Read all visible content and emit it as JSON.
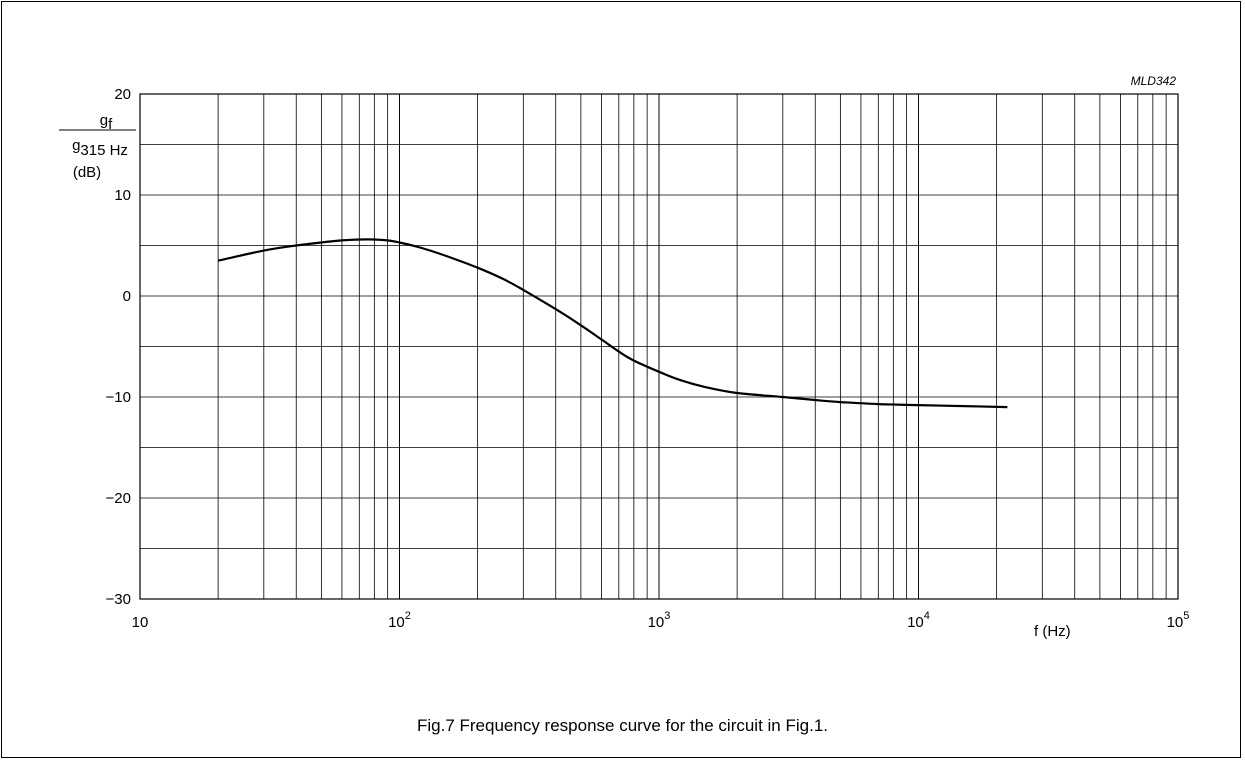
{
  "chart_data": {
    "type": "line",
    "code": "MLD342",
    "caption": "Fig.7  Frequency response curve for the circuit in Fig.1.",
    "xscale": "log",
    "xlim": [
      10,
      100000
    ],
    "ylim": [
      -30,
      20
    ],
    "grid": true,
    "xlabel": "f  (Hz)",
    "ylabel": {
      "numerator": "g",
      "numerator_sub": "f",
      "denominator": "g",
      "denominator_sub": "315 Hz",
      "unit": "(dB)"
    },
    "yticks": [
      {
        "value": 20,
        "label": "20"
      },
      {
        "value": 10,
        "label": "10"
      },
      {
        "value": 0,
        "label": "0"
      },
      {
        "value": -10,
        "label": "−10"
      },
      {
        "value": -20,
        "label": "−20"
      },
      {
        "value": -30,
        "label": "−30"
      }
    ],
    "xticks": [
      {
        "value": 10,
        "base": "10",
        "exp": ""
      },
      {
        "value": 100,
        "base": "10",
        "exp": "2"
      },
      {
        "value": 1000,
        "base": "10",
        "exp": "3"
      },
      {
        "value": 10000,
        "base": "10",
        "exp": "4"
      },
      {
        "value": 100000,
        "base": "10",
        "exp": "5"
      }
    ],
    "series": [
      {
        "x": [
          20,
          30,
          40,
          50,
          60,
          75,
          90,
          100,
          120,
          150,
          200,
          250,
          300,
          400,
          500,
          600,
          700,
          800,
          1000,
          1200,
          1500,
          2000,
          3000,
          4000,
          5000,
          7000,
          10000,
          15000,
          22000
        ],
        "y": [
          3.5,
          4.5,
          5.0,
          5.3,
          5.5,
          5.6,
          5.5,
          5.3,
          4.8,
          4.0,
          2.8,
          1.7,
          0.6,
          -1.3,
          -2.9,
          -4.3,
          -5.5,
          -6.4,
          -7.5,
          -8.3,
          -9.0,
          -9.6,
          -10.0,
          -10.3,
          -10.5,
          -10.7,
          -10.8,
          -10.9,
          -11.0
        ]
      }
    ]
  }
}
